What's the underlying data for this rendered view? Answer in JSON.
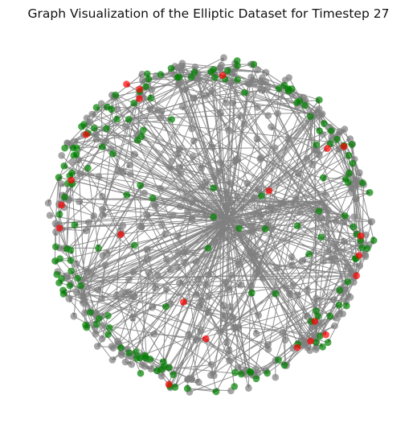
{
  "title": "Graph Visualization of the Elliptic Dataset for Timestep 27",
  "graph": {
    "node_categories": [
      {
        "color": "#808080",
        "alpha": 0.7
      },
      {
        "color": "#008000",
        "alpha": 0.7
      },
      {
        "color": "#ff0000",
        "alpha": 0.7
      }
    ],
    "edge_color": "#808080",
    "directed": true,
    "layout": "spring",
    "axes": "off"
  }
}
